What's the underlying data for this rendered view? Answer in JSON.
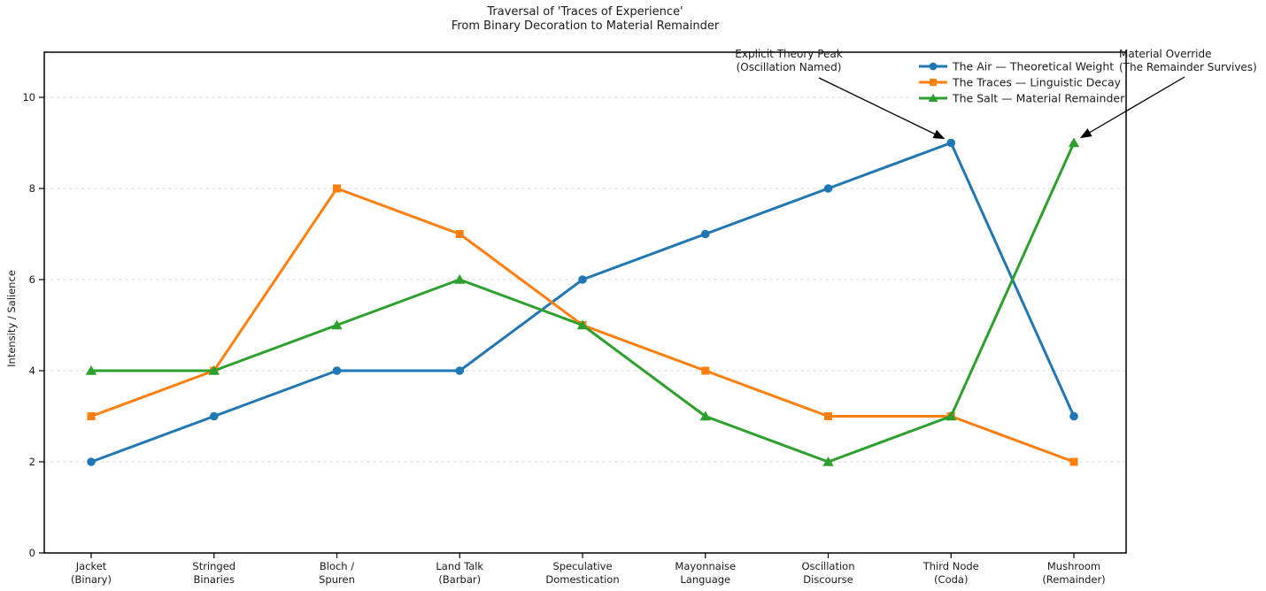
{
  "title": {
    "line1": "Traversal of 'Traces of Experience'",
    "line2": "From Binary Decoration to Material Remainder"
  },
  "colors": {
    "blue": "#1f77b4",
    "orange": "#ff7f0e",
    "green": "#2ca02c",
    "grid": "#dcdcdc",
    "axis": "#000000",
    "annotation_arrow": "#000000"
  },
  "chart_data": {
    "type": "line",
    "title": "Traversal of 'Traces of Experience' — From Binary Decoration to Material Remainder",
    "xlabel": "",
    "ylabel": "Intensity / Salience",
    "ylim": [
      0,
      11
    ],
    "yticks": [
      0,
      2,
      4,
      6,
      8,
      10
    ],
    "grid": "horizontal dashed",
    "legend_position": "upper right inside plot",
    "categories": [
      "Jacket\n(Binary)",
      "Stringed\nBinaries",
      "Bloch /\nSpuren",
      "Land Talk\n(Barbar)",
      "Speculative\nDomestication",
      "Mayonnaise\nLanguage",
      "Oscillation\nDiscourse",
      "Third Node\n(Coda)",
      "Mushroom\n(Remainder)"
    ],
    "series": [
      {
        "name": "The Air — Theoretical Weight",
        "color": "#1f77b4",
        "marker": "circle",
        "values": [
          2,
          3,
          4,
          4,
          6,
          7,
          8,
          9,
          3
        ]
      },
      {
        "name": "The Traces — Linguistic Decay",
        "color": "#ff7f0e",
        "marker": "square",
        "values": [
          3,
          4,
          8,
          7,
          5,
          4,
          3,
          3,
          2
        ]
      },
      {
        "name": "The Salt — Material Remainder",
        "color": "#2ca02c",
        "marker": "triangle-up",
        "values": [
          4,
          4,
          5,
          6,
          5,
          3,
          2,
          3,
          9
        ]
      }
    ],
    "annotations": [
      {
        "line1": "Explicit Theory Peak",
        "line2": "(Oscillation Named)",
        "target_series_index": 0,
        "target_point_index": 7,
        "target_value": 9,
        "target_category": "Third Node (Coda)"
      },
      {
        "line1": "Material Override",
        "line2": "(The Remainder Survives)",
        "target_series_index": 2,
        "target_point_index": 8,
        "target_value": 9,
        "target_category": "Mushroom (Remainder)"
      }
    ]
  }
}
